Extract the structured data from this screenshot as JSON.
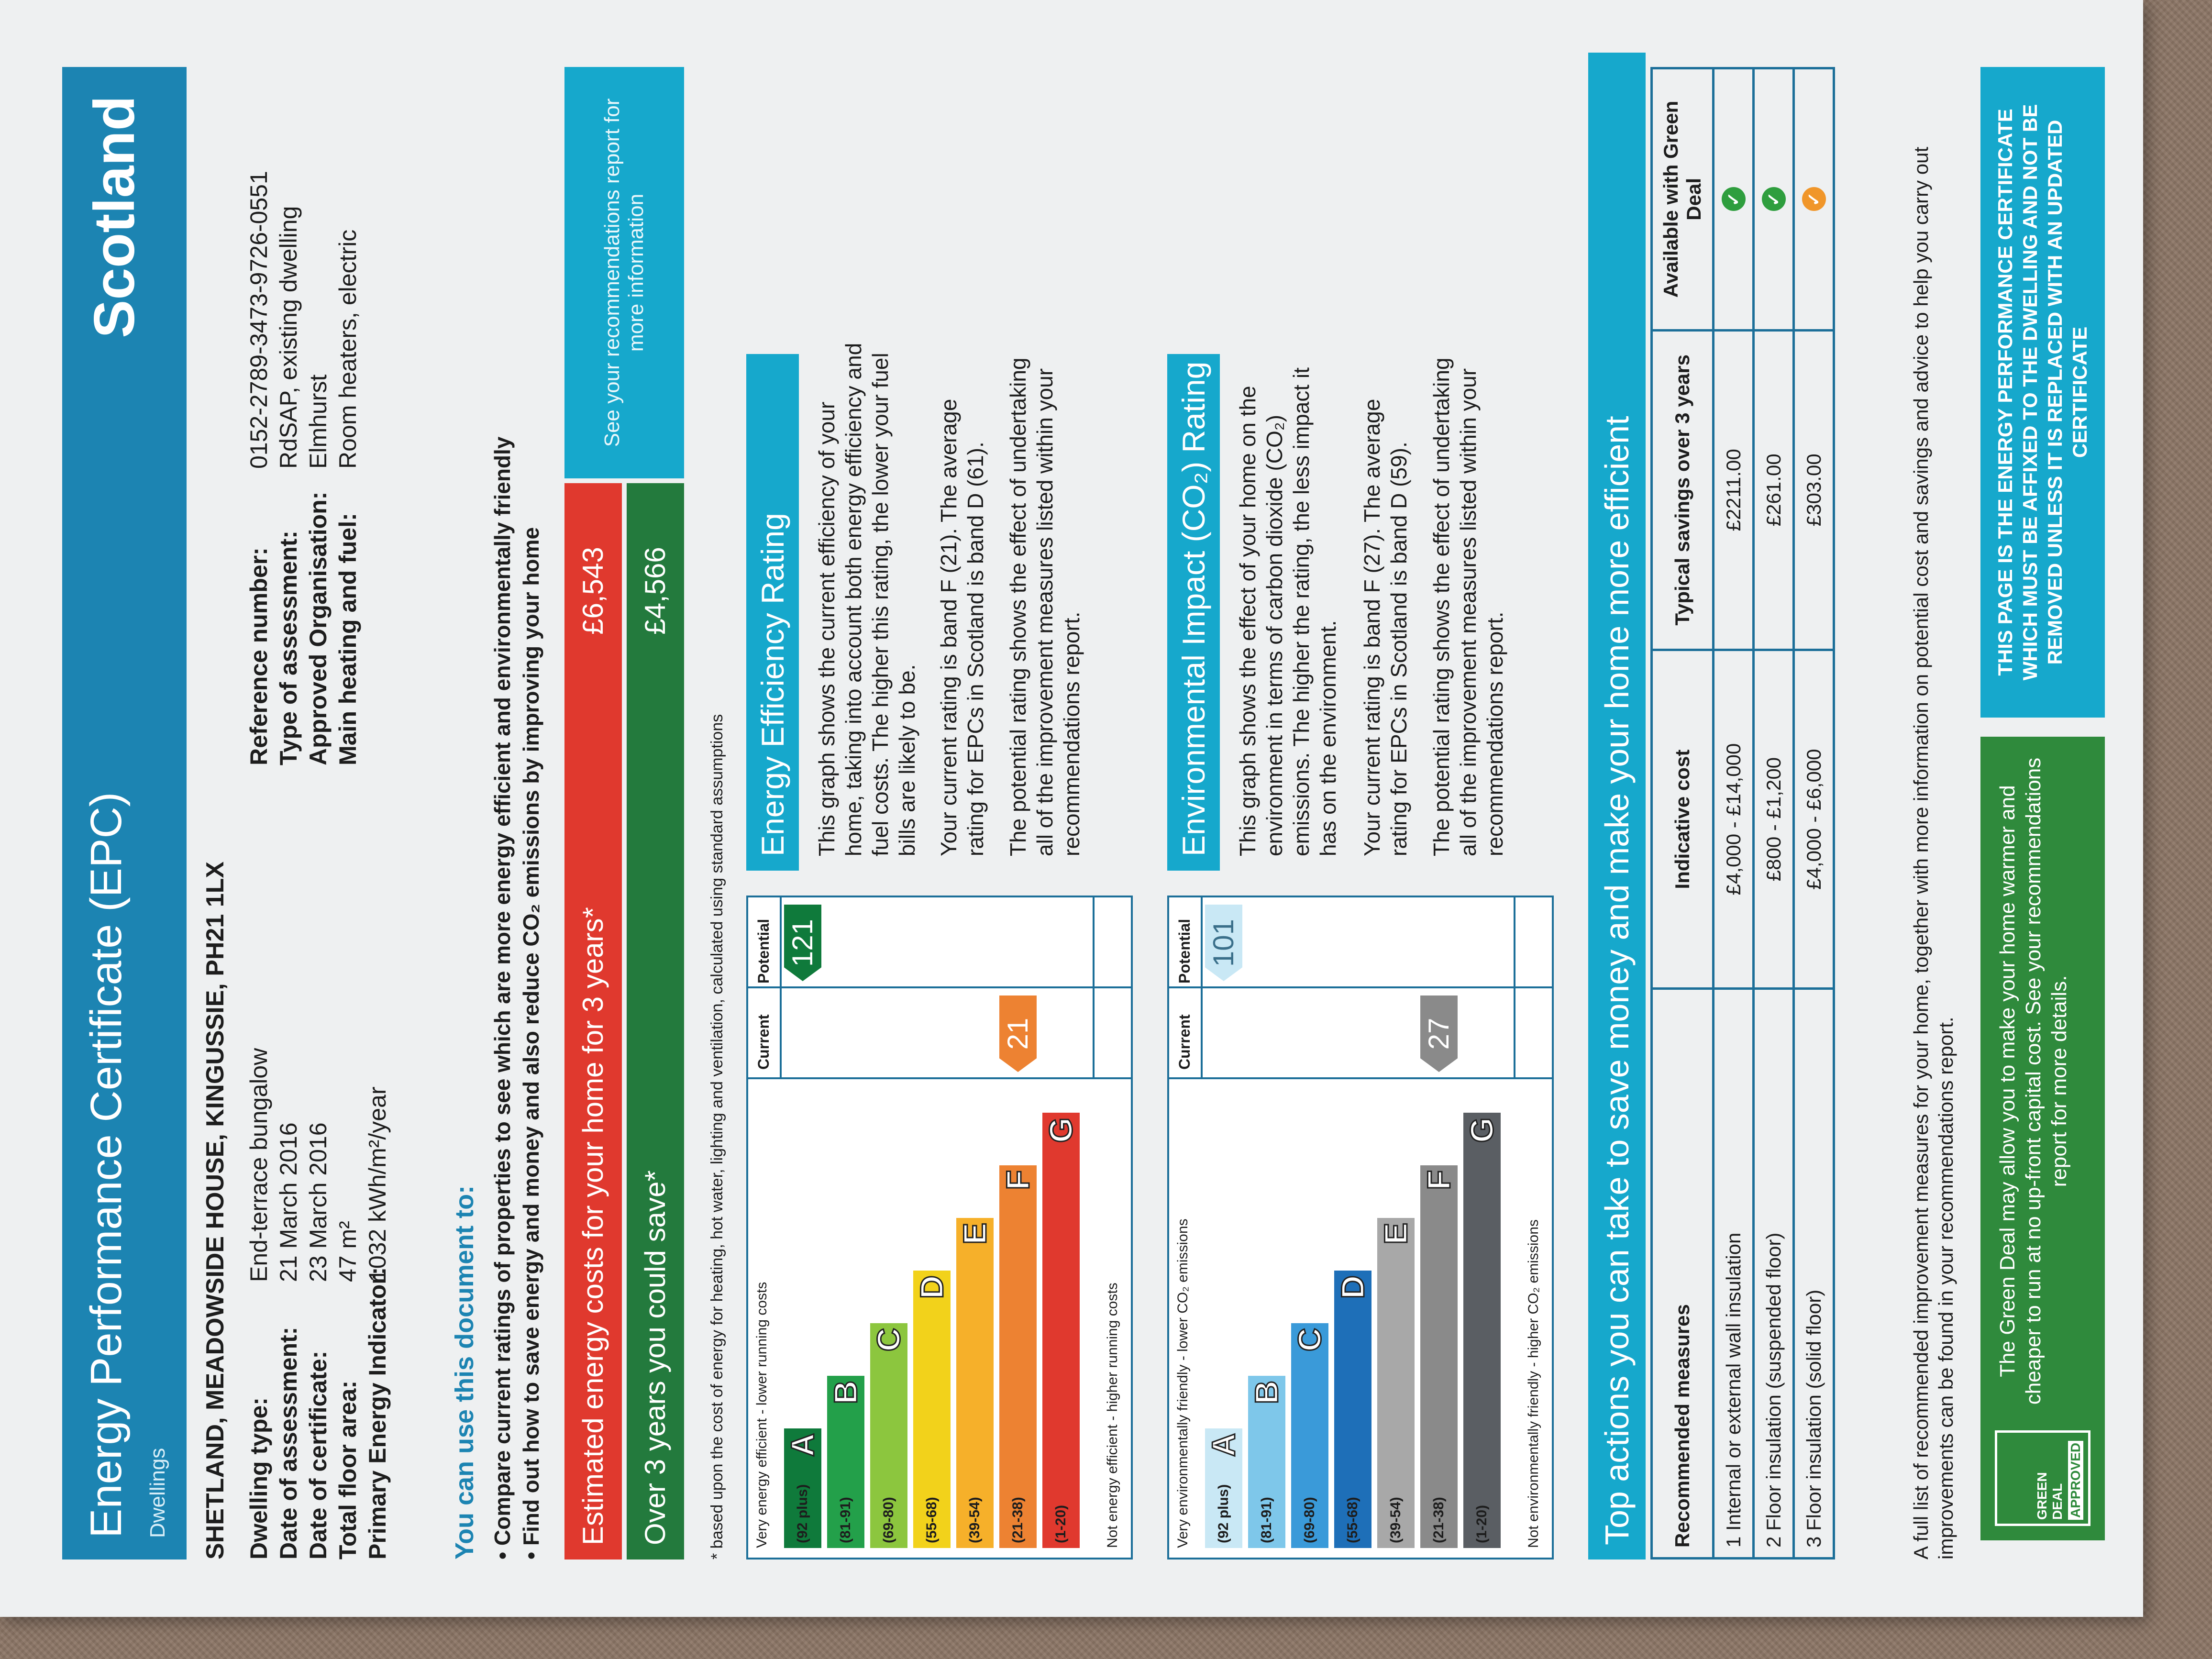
{
  "header": {
    "title": "Energy Performance Certificate (EPC)",
    "subtitle": "Dwellings",
    "region": "Scotland"
  },
  "address": "SHETLAND, MEADOWSIDE HOUSE, KINGUSSIE, PH21 1LX",
  "details_left": {
    "labels": [
      "Dwelling type:",
      "Date of assessment:",
      "Date of certificate:",
      "Total floor area:",
      "Primary Energy Indicator:"
    ],
    "values": [
      "End-terrace bungalow",
      "21 March 2016",
      "23 March 2016",
      "47 m²",
      "1032 kWh/m²/year"
    ]
  },
  "details_right": {
    "labels": [
      "Reference number:",
      "Type of assessment:",
      "Approved Organisation:",
      "Main heating and fuel:"
    ],
    "values": [
      "0152-2789-3473-9726-0551",
      "RdSAP, existing dwelling",
      "Elmhurst",
      "Room heaters, electric"
    ]
  },
  "use_doc": {
    "heading": "You can use this document to:",
    "bullet1": "Compare current ratings of properties to see which are more energy efficient and environmentally friendly",
    "bullet2": "Find out how to save energy and money and also reduce CO₂ emissions by improving your home"
  },
  "costs": {
    "est_label": "Estimated energy costs for your home for 3 years*",
    "est_value": "£6,543",
    "save_label": "Over 3 years you could save*",
    "save_value": "£4,566",
    "side_note": "See your recommendations report for more information",
    "footnote": "* based upon the cost of energy for heating, hot water, lighting and ventilation, calculated using standard assumptions"
  },
  "ee_chart": {
    "top_label": "Very energy efficient - lower running costs",
    "bottom_label": "Not energy efficient - higher running costs",
    "col_current": "Current",
    "col_potential": "Potential",
    "bands": [
      {
        "range": "(92 plus)",
        "letter": "A",
        "color": "#0f7a3b"
      },
      {
        "range": "(81-91)",
        "letter": "B",
        "color": "#23a04a"
      },
      {
        "range": "(69-80)",
        "letter": "C",
        "color": "#8cc63e"
      },
      {
        "range": "(55-68)",
        "letter": "D",
        "color": "#f2d21b"
      },
      {
        "range": "(39-54)",
        "letter": "E",
        "color": "#f6b02a"
      },
      {
        "range": "(21-38)",
        "letter": "F",
        "color": "#ed8232"
      },
      {
        "range": "(1-20)",
        "letter": "G",
        "color": "#e0392e"
      }
    ],
    "current": "21",
    "current_color": "#ed8232",
    "potential": "121",
    "potential_color": "#0f7a3b"
  },
  "ei_chart": {
    "top_label": "Very environmentally friendly - lower CO₂ emissions",
    "bottom_label": "Not environmentally friendly - higher CO₂ emissions",
    "col_current": "Current",
    "col_potential": "Potential",
    "bands": [
      {
        "range": "(92 plus)",
        "letter": "A",
        "color": "#c9e8f5"
      },
      {
        "range": "(81-91)",
        "letter": "B",
        "color": "#7ec7ea"
      },
      {
        "range": "(69-80)",
        "letter": "C",
        "color": "#3a9ad9"
      },
      {
        "range": "(55-68)",
        "letter": "D",
        "color": "#1e6fb8"
      },
      {
        "range": "(39-54)",
        "letter": "E",
        "color": "#a8a8a8"
      },
      {
        "range": "(21-38)",
        "letter": "F",
        "color": "#8a8a8a"
      },
      {
        "range": "(1-20)",
        "letter": "G",
        "color": "#5a5e63"
      }
    ],
    "current": "27",
    "current_color": "#8a8a8a",
    "potential": "101",
    "potential_color": "#c9e8f5"
  },
  "ee_text": {
    "heading": "Energy Efficiency Rating",
    "p1": "This graph shows the current efficiency of your home, taking into account both energy efficiency and fuel costs. The higher this rating, the lower your fuel bills are likely to be.",
    "p2": "Your current rating is band F (21). The average rating for EPCs in Scotland is band D (61).",
    "p3": "The potential rating shows the effect of undertaking all of the improvement measures listed within your recommendations report."
  },
  "ei_text": {
    "heading": "Environmental Impact (CO₂) Rating",
    "p1": "This graph shows the effect of your home on the environment in terms of carbon dioxide (CO₂) emissions. The higher the rating, the less impact it has on the environment.",
    "p2": "Your current rating is band F (27). The average rating for EPCs in Scotland is band D (59).",
    "p3": "The potential rating shows the effect of undertaking all of the improvement measures listed within your recommendations report."
  },
  "actions": {
    "heading": "Top actions you can take to save money and make your home more efficient",
    "headers": [
      "Recommended measures",
      "Indicative cost",
      "Typical savings over 3 years",
      "Available with Green Deal"
    ],
    "rows": [
      {
        "measure": "1 Internal or external wall insulation",
        "cost": "£4,000 - £14,000",
        "savings": "£2211.00",
        "gd_color": "#2e9e3e"
      },
      {
        "measure": "2 Floor insulation (suspended floor)",
        "cost": "£800 - £1,200",
        "savings": "£261.00",
        "gd_color": "#2e9e3e"
      },
      {
        "measure": "3 Floor insulation (solid floor)",
        "cost": "£4,000 - £6,000",
        "savings": "£303.00",
        "gd_color": "#f0962a"
      }
    ],
    "footer": "A full list of recommended improvement measures for your home, together with more information on potential cost and savings and advice to help you carry out improvements can be found in your recommendations report."
  },
  "green_deal": {
    "logo_line1": "GREEN DEAL",
    "logo_line2": "APPROVED",
    "text": "The Green Deal may allow you to make your home warmer and cheaper to run at no up-front capital cost. See your recommendations report for more details."
  },
  "warning": "THIS PAGE IS THE ENERGY PERFORMANCE CERTIFICATE WHICH MUST BE AFFIXED TO THE DWELLING AND NOT BE REMOVED UNLESS IT IS REPLACED WITH AN UPDATED CERTIFICATE"
}
